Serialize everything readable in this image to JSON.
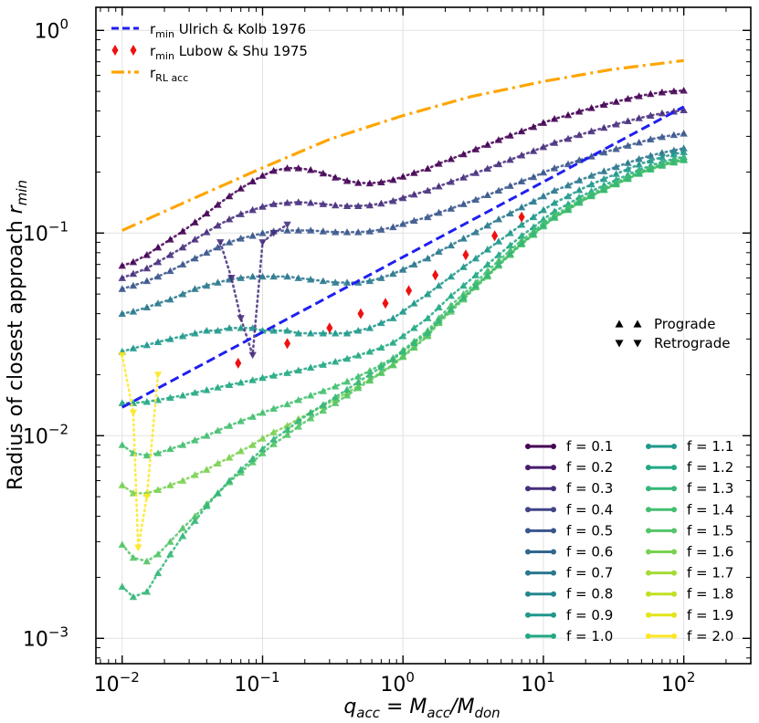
{
  "chart_data": {
    "type": "scatter",
    "xscale": "log",
    "yscale": "log",
    "xlim": [
      0.0065,
      300
    ],
    "ylim": [
      0.00075,
      1.3
    ],
    "grid": true,
    "xlabel": "q_acc = M_acc/M_don",
    "ylabel": "Radius of closest approach r_min",
    "xticks": [
      {
        "base": "10",
        "exp": "−2",
        "value": 0.01
      },
      {
        "base": "10",
        "exp": "−1",
        "value": 0.1
      },
      {
        "base": "10",
        "exp": "0",
        "value": 1
      },
      {
        "base": "10",
        "exp": "1",
        "value": 10
      },
      {
        "base": "10",
        "exp": "2",
        "value": 100
      }
    ],
    "yticks": [
      {
        "base": "10",
        "exp": "−3",
        "value": 0.001
      },
      {
        "base": "10",
        "exp": "−2",
        "value": 0.01
      },
      {
        "base": "10",
        "exp": "−1",
        "value": 0.1
      },
      {
        "base": "10",
        "exp": "0",
        "value": 1
      }
    ],
    "legend_top": {
      "placement": "top-left",
      "items": [
        {
          "main": "r",
          "sub": "min",
          "rest": " Ulrich & Kolb 1976",
          "color": "#1f1fef",
          "style": "dashed"
        },
        {
          "main": "r",
          "sub": "min",
          "rest": " Lubow & Shu 1975",
          "color": "#ee1111",
          "style": "diamond"
        },
        {
          "main": "r",
          "sub": "RL acc",
          "rest": "",
          "color": "#ffa500",
          "style": "dashdot"
        }
      ]
    },
    "legend_markers": {
      "placement": "center-right",
      "items": [
        {
          "label": "Prograde",
          "marker": "triangle-up"
        },
        {
          "label": "Retrograde",
          "marker": "triangle-down"
        }
      ]
    },
    "legend_f": {
      "placement": "lower-right",
      "items": [
        {
          "label": "f = 0.1",
          "color": "#440154"
        },
        {
          "label": "f = 0.2",
          "color": "#481a6c"
        },
        {
          "label": "f = 0.3",
          "color": "#472f7d"
        },
        {
          "label": "f = 0.4",
          "color": "#414487"
        },
        {
          "label": "f = 0.5",
          "color": "#39568c"
        },
        {
          "label": "f = 0.6",
          "color": "#31688e"
        },
        {
          "label": "f = 0.7",
          "color": "#2a788e"
        },
        {
          "label": "f = 0.8",
          "color": "#23888e"
        },
        {
          "label": "f = 0.9",
          "color": "#1f988b"
        },
        {
          "label": "f = 1.0",
          "color": "#22a884"
        },
        {
          "label": "f = 1.1",
          "color": "#1f988b"
        },
        {
          "label": "f = 1.2",
          "color": "#22a884"
        },
        {
          "label": "f = 1.3",
          "color": "#35b779"
        },
        {
          "label": "f = 1.4",
          "color": "#44bf70"
        },
        {
          "label": "f = 1.5",
          "color": "#54c568"
        },
        {
          "label": "f = 1.6",
          "color": "#7ad151"
        },
        {
          "label": "f = 1.7",
          "color": "#a5db36"
        },
        {
          "label": "f = 1.8",
          "color": "#c2df23"
        },
        {
          "label": "f = 1.9",
          "color": "#e0e519"
        },
        {
          "label": "f = 2.0",
          "color": "#fde725"
        }
      ]
    },
    "rl_acc_curve": {
      "color": "#ffa500",
      "x": [
        0.01,
        0.03,
        0.1,
        0.3,
        1,
        3,
        10,
        30,
        100
      ],
      "y": [
        0.103,
        0.145,
        0.21,
        0.29,
        0.38,
        0.47,
        0.56,
        0.64,
        0.71
      ]
    },
    "ulrich_kolb_line": {
      "color": "#1f1fef",
      "x": [
        0.01,
        100
      ],
      "y": [
        0.0138,
        0.42
      ]
    },
    "lubow_shu_points": {
      "color": "#ee1111",
      "x": [
        0.067,
        0.15,
        0.3,
        0.5,
        0.75,
        1.1,
        1.7,
        2.8,
        4.5,
        7
      ],
      "y": [
        0.0228,
        0.0285,
        0.034,
        0.04,
        0.045,
        0.052,
        0.062,
        0.078,
        0.097,
        0.12
      ]
    },
    "series_x": [
      0.01,
      0.012,
      0.015,
      0.018,
      0.022,
      0.027,
      0.033,
      0.04,
      0.048,
      0.058,
      0.07,
      0.085,
      0.1,
      0.12,
      0.15,
      0.18,
      0.22,
      0.27,
      0.33,
      0.4,
      0.48,
      0.58,
      0.7,
      0.85,
      1.0,
      1.2,
      1.5,
      1.8,
      2.2,
      2.7,
      3.3,
      4.0,
      4.8,
      5.8,
      7.0,
      8.5,
      10,
      12,
      15,
      18,
      22,
      27,
      33,
      40,
      48,
      58,
      70,
      85,
      100
    ],
    "series": [
      {
        "name": "f = 0.1",
        "color": "#440154",
        "y": [
          0.069,
          0.072,
          0.078,
          0.085,
          0.093,
          0.102,
          0.113,
          0.125,
          0.138,
          0.152,
          0.166,
          0.18,
          0.192,
          0.203,
          0.209,
          0.209,
          0.205,
          0.197,
          0.188,
          0.181,
          0.177,
          0.176,
          0.178,
          0.183,
          0.19,
          0.198,
          0.208,
          0.22,
          0.232,
          0.245,
          0.259,
          0.273,
          0.288,
          0.303,
          0.318,
          0.334,
          0.35,
          0.366,
          0.382,
          0.398,
          0.414,
          0.43,
          0.445,
          0.46,
          0.474,
          0.486,
          0.495,
          0.501,
          0.505
        ]
      },
      {
        "name": "f = 0.3",
        "color": "#472f7d",
        "y": [
          0.06,
          0.063,
          0.067,
          0.072,
          0.078,
          0.085,
          0.093,
          0.101,
          0.109,
          0.117,
          0.124,
          0.13,
          0.135,
          0.139,
          0.141,
          0.142,
          0.141,
          0.139,
          0.137,
          0.136,
          0.136,
          0.137,
          0.14,
          0.144,
          0.149,
          0.155,
          0.162,
          0.17,
          0.179,
          0.188,
          0.198,
          0.208,
          0.219,
          0.23,
          0.242,
          0.254,
          0.266,
          0.279,
          0.292,
          0.305,
          0.318,
          0.331,
          0.344,
          0.357,
          0.369,
          0.38,
          0.39,
          0.398,
          0.404
        ]
      },
      {
        "name": "f = 0.5",
        "color": "#39568c",
        "y": [
          0.053,
          0.055,
          0.058,
          0.061,
          0.065,
          0.07,
          0.075,
          0.08,
          0.085,
          0.09,
          0.094,
          0.097,
          0.1,
          0.102,
          0.103,
          0.103,
          0.103,
          0.102,
          0.101,
          0.101,
          0.101,
          0.102,
          0.104,
          0.107,
          0.111,
          0.115,
          0.12,
          0.126,
          0.132,
          0.139,
          0.146,
          0.154,
          0.162,
          0.171,
          0.18,
          0.189,
          0.199,
          0.209,
          0.219,
          0.229,
          0.239,
          0.25,
          0.26,
          0.27,
          0.28,
          0.29,
          0.298,
          0.305,
          0.31
        ]
      },
      {
        "name": "f = 0.7",
        "color": "#2a788e",
        "y": [
          0.04,
          0.041,
          0.043,
          0.045,
          0.047,
          0.05,
          0.053,
          0.055,
          0.057,
          0.059,
          0.06,
          0.061,
          0.061,
          0.061,
          0.061,
          0.06,
          0.059,
          0.058,
          0.057,
          0.057,
          0.057,
          0.058,
          0.06,
          0.063,
          0.066,
          0.07,
          0.075,
          0.081,
          0.087,
          0.094,
          0.101,
          0.109,
          0.117,
          0.125,
          0.134,
          0.143,
          0.152,
          0.162,
          0.172,
          0.182,
          0.192,
          0.202,
          0.212,
          0.222,
          0.232,
          0.241,
          0.249,
          0.256,
          0.262
        ]
      },
      {
        "name": "f = 0.9",
        "color": "#1f988b",
        "y": [
          0.026,
          0.027,
          0.028,
          0.029,
          0.03,
          0.031,
          0.032,
          0.033,
          0.033,
          0.034,
          0.034,
          0.034,
          0.033,
          0.033,
          0.033,
          0.032,
          0.032,
          0.032,
          0.032,
          0.032,
          0.033,
          0.034,
          0.036,
          0.038,
          0.041,
          0.045,
          0.05,
          0.055,
          0.061,
          0.068,
          0.075,
          0.083,
          0.091,
          0.1,
          0.11,
          0.12,
          0.13,
          0.141,
          0.152,
          0.163,
          0.174,
          0.185,
          0.196,
          0.207,
          0.218,
          0.228,
          0.237,
          0.245,
          0.251
        ]
      },
      {
        "name": "f = 1.1",
        "color": "#22a884",
        "y": [
          0.0145,
          0.0145,
          0.0147,
          0.015,
          0.0154,
          0.0158,
          0.0163,
          0.0168,
          0.0173,
          0.0178,
          0.0183,
          0.0188,
          0.0193,
          0.0198,
          0.0204,
          0.021,
          0.0217,
          0.0224,
          0.0232,
          0.024,
          0.0249,
          0.026,
          0.0272,
          0.0288,
          0.031,
          0.034,
          0.038,
          0.043,
          0.049,
          0.055,
          0.062,
          0.07,
          0.078,
          0.087,
          0.097,
          0.107,
          0.117,
          0.128,
          0.139,
          0.15,
          0.161,
          0.172,
          0.183,
          0.194,
          0.205,
          0.215,
          0.224,
          0.232,
          0.238
        ]
      },
      {
        "name": "f = 1.3",
        "color": "#44bf70",
        "y": [
          0.009,
          0.0082,
          0.008,
          0.0082,
          0.0086,
          0.009,
          0.0095,
          0.01,
          0.0106,
          0.0112,
          0.0118,
          0.0124,
          0.013,
          0.0136,
          0.0143,
          0.015,
          0.0158,
          0.0166,
          0.0175,
          0.0185,
          0.0196,
          0.0209,
          0.0224,
          0.0242,
          0.0264,
          0.0292,
          0.033,
          0.038,
          0.044,
          0.05,
          0.057,
          0.065,
          0.073,
          0.082,
          0.092,
          0.102,
          0.112,
          0.123,
          0.134,
          0.145,
          0.156,
          0.167,
          0.178,
          0.189,
          0.2,
          0.21,
          0.219,
          0.227,
          0.233
        ]
      },
      {
        "name": "f = 1.5",
        "color": "#7ad151",
        "y": [
          0.0057,
          0.0052,
          0.0052,
          0.0054,
          0.0057,
          0.006,
          0.0064,
          0.0068,
          0.0073,
          0.0078,
          0.0084,
          0.009,
          0.0097,
          0.0104,
          0.0112,
          0.0121,
          0.013,
          0.014,
          0.0151,
          0.0163,
          0.0176,
          0.019,
          0.0206,
          0.0225,
          0.0248,
          0.0277,
          0.0315,
          0.0365,
          0.042,
          0.048,
          0.055,
          0.062,
          0.07,
          0.079,
          0.089,
          0.099,
          0.109,
          0.12,
          0.131,
          0.142,
          0.153,
          0.164,
          0.175,
          0.186,
          0.197,
          0.207,
          0.216,
          0.224,
          0.23
        ]
      },
      {
        "name": "f = 1.7",
        "color": "#54c568",
        "y": [
          0.0029,
          0.0025,
          0.0024,
          0.0026,
          0.003,
          0.0035,
          0.004,
          0.0046,
          0.0052,
          0.0059,
          0.0066,
          0.0074,
          0.0082,
          0.0091,
          0.0101,
          0.0111,
          0.0122,
          0.0133,
          0.0145,
          0.0158,
          0.0172,
          0.0187,
          0.0204,
          0.0223,
          0.0245,
          0.0272,
          0.031,
          0.036,
          0.041,
          0.047,
          0.054,
          0.061,
          0.069,
          0.078,
          0.088,
          0.098,
          0.108,
          0.119,
          0.13,
          0.141,
          0.152,
          0.163,
          0.174,
          0.185,
          0.196,
          0.206,
          0.215,
          0.223,
          0.229
        ]
      },
      {
        "name": "f = 1.9",
        "color": "#35b779",
        "y": [
          0.0018,
          0.0016,
          0.0017,
          0.0021,
          0.0026,
          0.0032,
          0.0038,
          0.0045,
          0.0052,
          0.006,
          0.0068,
          0.0077,
          0.0086,
          0.0096,
          0.0107,
          0.0118,
          0.013,
          0.0142,
          0.0155,
          0.0169,
          0.0184,
          0.02,
          0.0218,
          0.0238,
          0.026,
          0.0287,
          0.0322,
          0.037,
          0.042,
          0.048,
          0.055,
          0.062,
          0.07,
          0.079,
          0.089,
          0.099,
          0.109,
          0.12,
          0.131,
          0.142,
          0.153,
          0.164,
          0.175,
          0.186,
          0.197,
          0.207,
          0.216,
          0.224,
          0.23
        ]
      }
    ],
    "retro_series": [
      {
        "name": "f = 0.3",
        "color": "#472f7d",
        "x": [
          0.05,
          0.06,
          0.07,
          0.085,
          0.1,
          0.12,
          0.15
        ],
        "y": [
          0.09,
          0.06,
          0.038,
          0.025,
          0.09,
          0.1,
          0.11
        ]
      },
      {
        "name": "f = 2.0",
        "color": "#fde725",
        "x": [
          0.01,
          0.012,
          0.013,
          0.015,
          0.018
        ],
        "y": [
          0.025,
          0.013,
          0.0028,
          0.005,
          0.02
        ]
      }
    ]
  }
}
